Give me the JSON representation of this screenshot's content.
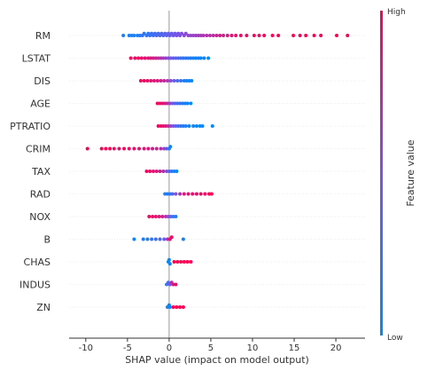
{
  "chart_data": {
    "type": "scatter",
    "title": "",
    "xlabel": "SHAP value (impact on model output)",
    "xlim": [
      -12,
      23.5
    ],
    "xticks": [
      -10,
      -5,
      0,
      5,
      10,
      15,
      20
    ],
    "zero_line": true,
    "colorbar": {
      "label": "Feature value",
      "high_label": "High",
      "low_label": "Low",
      "low_color": "#008bfb",
      "mid_color": "#7c52e6",
      "high_color": "#ff0052"
    },
    "features": [
      {
        "name": "RM",
        "points": [
          {
            "x": -5.5,
            "v": 0.1
          },
          {
            "x": -4.8,
            "v": 0.1
          },
          {
            "x": -4.5,
            "v": 0.15
          },
          {
            "x": -4.2,
            "v": 0.1
          },
          {
            "x": -3.8,
            "v": 0.12
          },
          {
            "x": -3.5,
            "v": 0.15
          },
          {
            "x": -3.2,
            "v": 0.2
          },
          {
            "x": -3.0,
            "v": 0.15
          },
          {
            "x": -2.7,
            "v": 0.2
          },
          {
            "x": -2.5,
            "v": 0.2
          },
          {
            "x": -2.3,
            "v": 0.22
          },
          {
            "x": -2.1,
            "v": 0.25
          },
          {
            "x": -1.9,
            "v": 0.25
          },
          {
            "x": -1.7,
            "v": 0.25
          },
          {
            "x": -1.5,
            "v": 0.3
          },
          {
            "x": -1.3,
            "v": 0.3
          },
          {
            "x": -1.1,
            "v": 0.3
          },
          {
            "x": -0.9,
            "v": 0.32
          },
          {
            "x": -0.7,
            "v": 0.35
          },
          {
            "x": -0.5,
            "v": 0.35
          },
          {
            "x": -0.3,
            "v": 0.38
          },
          {
            "x": -0.1,
            "v": 0.4
          },
          {
            "x": 0.1,
            "v": 0.42
          },
          {
            "x": 0.3,
            "v": 0.42
          },
          {
            "x": 0.5,
            "v": 0.45
          },
          {
            "x": 0.7,
            "v": 0.45
          },
          {
            "x": 0.9,
            "v": 0.48
          },
          {
            "x": 1.1,
            "v": 0.5
          },
          {
            "x": 1.3,
            "v": 0.52
          },
          {
            "x": 1.5,
            "v": 0.52
          },
          {
            "x": 1.8,
            "v": 0.55
          },
          {
            "x": 2.0,
            "v": 0.55
          },
          {
            "x": 2.3,
            "v": 0.58
          },
          {
            "x": 2.6,
            "v": 0.6
          },
          {
            "x": 2.9,
            "v": 0.6
          },
          {
            "x": 3.2,
            "v": 0.62
          },
          {
            "x": 3.5,
            "v": 0.65
          },
          {
            "x": 3.8,
            "v": 0.65
          },
          {
            "x": 4.1,
            "v": 0.68
          },
          {
            "x": 4.5,
            "v": 0.7
          },
          {
            "x": 4.9,
            "v": 0.72
          },
          {
            "x": 5.3,
            "v": 0.75
          },
          {
            "x": 5.7,
            "v": 0.78
          },
          {
            "x": 6.1,
            "v": 0.8
          },
          {
            "x": 6.5,
            "v": 0.82
          },
          {
            "x": 7.0,
            "v": 0.85
          },
          {
            "x": 7.5,
            "v": 0.88
          },
          {
            "x": 8.0,
            "v": 0.9
          },
          {
            "x": 8.6,
            "v": 0.92
          },
          {
            "x": 9.3,
            "v": 0.95
          },
          {
            "x": 10.2,
            "v": 0.96
          },
          {
            "x": 10.8,
            "v": 0.97
          },
          {
            "x": 11.4,
            "v": 0.97
          },
          {
            "x": 12.4,
            "v": 0.98
          },
          {
            "x": 13.1,
            "v": 0.98
          },
          {
            "x": 14.9,
            "v": 0.99
          },
          {
            "x": 15.7,
            "v": 0.99
          },
          {
            "x": 16.4,
            "v": 0.99
          },
          {
            "x": 17.4,
            "v": 1.0
          },
          {
            "x": 18.2,
            "v": 1.0
          },
          {
            "x": 20.1,
            "v": 1.0
          },
          {
            "x": 21.4,
            "v": 1.0
          }
        ]
      },
      {
        "name": "LSTAT",
        "points": [
          {
            "x": -4.6,
            "v": 0.98
          },
          {
            "x": -4.1,
            "v": 0.95
          },
          {
            "x": -3.7,
            "v": 0.95
          },
          {
            "x": -3.3,
            "v": 0.92
          },
          {
            "x": -2.9,
            "v": 0.9
          },
          {
            "x": -2.5,
            "v": 0.88
          },
          {
            "x": -2.2,
            "v": 0.85
          },
          {
            "x": -1.9,
            "v": 0.82
          },
          {
            "x": -1.6,
            "v": 0.8
          },
          {
            "x": -1.3,
            "v": 0.75
          },
          {
            "x": -1.0,
            "v": 0.7
          },
          {
            "x": -0.7,
            "v": 0.65
          },
          {
            "x": -0.4,
            "v": 0.6
          },
          {
            "x": -0.1,
            "v": 0.55
          },
          {
            "x": 0.2,
            "v": 0.45
          },
          {
            "x": 0.5,
            "v": 0.4
          },
          {
            "x": 0.8,
            "v": 0.35
          },
          {
            "x": 1.1,
            "v": 0.3
          },
          {
            "x": 1.4,
            "v": 0.25
          },
          {
            "x": 1.7,
            "v": 0.2
          },
          {
            "x": 2.0,
            "v": 0.18
          },
          {
            "x": 2.3,
            "v": 0.15
          },
          {
            "x": 2.6,
            "v": 0.12
          },
          {
            "x": 2.9,
            "v": 0.1
          },
          {
            "x": 3.2,
            "v": 0.08
          },
          {
            "x": 3.5,
            "v": 0.05
          },
          {
            "x": 3.8,
            "v": 0.05
          },
          {
            "x": 4.2,
            "v": 0.03
          },
          {
            "x": 4.7,
            "v": 0.02
          }
        ]
      },
      {
        "name": "DIS",
        "points": [
          {
            "x": -3.4,
            "v": 0.95
          },
          {
            "x": -3.0,
            "v": 0.95
          },
          {
            "x": -2.6,
            "v": 0.92
          },
          {
            "x": -2.2,
            "v": 0.9
          },
          {
            "x": -1.8,
            "v": 0.88
          },
          {
            "x": -1.4,
            "v": 0.85
          },
          {
            "x": -1.0,
            "v": 0.8
          },
          {
            "x": -0.6,
            "v": 0.75
          },
          {
            "x": -0.2,
            "v": 0.65
          },
          {
            "x": 0.2,
            "v": 0.55
          },
          {
            "x": 0.6,
            "v": 0.4
          },
          {
            "x": 1.0,
            "v": 0.3
          },
          {
            "x": 1.4,
            "v": 0.2
          },
          {
            "x": 1.8,
            "v": 0.12
          },
          {
            "x": 2.1,
            "v": 0.08
          },
          {
            "x": 2.4,
            "v": 0.05
          },
          {
            "x": 2.7,
            "v": 0.02
          }
        ]
      },
      {
        "name": "AGE",
        "points": [
          {
            "x": -1.4,
            "v": 0.95
          },
          {
            "x": -1.1,
            "v": 0.92
          },
          {
            "x": -0.8,
            "v": 0.9
          },
          {
            "x": -0.5,
            "v": 0.85
          },
          {
            "x": -0.2,
            "v": 0.75
          },
          {
            "x": 0.1,
            "v": 0.6
          },
          {
            "x": 0.4,
            "v": 0.45
          },
          {
            "x": 0.7,
            "v": 0.35
          },
          {
            "x": 1.0,
            "v": 0.25
          },
          {
            "x": 1.3,
            "v": 0.2
          },
          {
            "x": 1.6,
            "v": 0.15
          },
          {
            "x": 1.9,
            "v": 0.1
          },
          {
            "x": 2.2,
            "v": 0.05
          },
          {
            "x": 2.6,
            "v": 0.03
          }
        ]
      },
      {
        "name": "PTRATIO",
        "points": [
          {
            "x": -1.3,
            "v": 0.95
          },
          {
            "x": -1.0,
            "v": 0.92
          },
          {
            "x": -0.7,
            "v": 0.9
          },
          {
            "x": -0.4,
            "v": 0.85
          },
          {
            "x": -0.1,
            "v": 0.75
          },
          {
            "x": 0.2,
            "v": 0.6
          },
          {
            "x": 0.5,
            "v": 0.5
          },
          {
            "x": 0.8,
            "v": 0.35
          },
          {
            "x": 1.1,
            "v": 0.25
          },
          {
            "x": 1.4,
            "v": 0.2
          },
          {
            "x": 1.7,
            "v": 0.15
          },
          {
            "x": 2.0,
            "v": 0.1
          },
          {
            "x": 2.4,
            "v": 0.08
          },
          {
            "x": 2.9,
            "v": 0.05
          },
          {
            "x": 3.3,
            "v": 0.05
          },
          {
            "x": 3.7,
            "v": 0.03
          },
          {
            "x": 4.0,
            "v": 0.02
          },
          {
            "x": 5.2,
            "v": 0.02
          }
        ]
      },
      {
        "name": "CRIM",
        "points": [
          {
            "x": -9.8,
            "v": 1.0
          },
          {
            "x": -8.1,
            "v": 0.98
          },
          {
            "x": -7.6,
            "v": 0.97
          },
          {
            "x": -7.1,
            "v": 0.97
          },
          {
            "x": -6.6,
            "v": 0.96
          },
          {
            "x": -6.0,
            "v": 0.95
          },
          {
            "x": -5.4,
            "v": 0.95
          },
          {
            "x": -4.8,
            "v": 0.93
          },
          {
            "x": -4.2,
            "v": 0.92
          },
          {
            "x": -3.6,
            "v": 0.9
          },
          {
            "x": -3.0,
            "v": 0.88
          },
          {
            "x": -2.5,
            "v": 0.85
          },
          {
            "x": -2.0,
            "v": 0.82
          },
          {
            "x": -1.5,
            "v": 0.78
          },
          {
            "x": -1.0,
            "v": 0.7
          },
          {
            "x": -0.6,
            "v": 0.6
          },
          {
            "x": -0.3,
            "v": 0.4
          },
          {
            "x": 0.0,
            "v": 0.15
          },
          {
            "x": 0.15,
            "v": 0.05
          }
        ]
      },
      {
        "name": "TAX",
        "points": [
          {
            "x": -2.7,
            "v": 0.95
          },
          {
            "x": -2.3,
            "v": 0.92
          },
          {
            "x": -1.9,
            "v": 0.9
          },
          {
            "x": -1.5,
            "v": 0.85
          },
          {
            "x": -1.1,
            "v": 0.8
          },
          {
            "x": -0.7,
            "v": 0.7
          },
          {
            "x": -0.3,
            "v": 0.55
          },
          {
            "x": 0.0,
            "v": 0.3
          },
          {
            "x": 0.3,
            "v": 0.15
          },
          {
            "x": 0.6,
            "v": 0.1
          },
          {
            "x": 0.9,
            "v": 0.05
          }
        ]
      },
      {
        "name": "RAD",
        "points": [
          {
            "x": -0.5,
            "v": 0.1
          },
          {
            "x": -0.2,
            "v": 0.12
          },
          {
            "x": 0.1,
            "v": 0.2
          },
          {
            "x": 0.4,
            "v": 0.35
          },
          {
            "x": 0.8,
            "v": 0.5
          },
          {
            "x": 1.3,
            "v": 0.7
          },
          {
            "x": 1.8,
            "v": 0.85
          },
          {
            "x": 2.3,
            "v": 0.9
          },
          {
            "x": 2.8,
            "v": 0.92
          },
          {
            "x": 3.3,
            "v": 0.95
          },
          {
            "x": 3.8,
            "v": 0.95
          },
          {
            "x": 4.3,
            "v": 0.97
          },
          {
            "x": 4.8,
            "v": 0.98
          },
          {
            "x": 5.1,
            "v": 1.0
          }
        ]
      },
      {
        "name": "NOX",
        "points": [
          {
            "x": -2.4,
            "v": 0.95
          },
          {
            "x": -2.0,
            "v": 0.92
          },
          {
            "x": -1.6,
            "v": 0.9
          },
          {
            "x": -1.2,
            "v": 0.85
          },
          {
            "x": -0.8,
            "v": 0.8
          },
          {
            "x": -0.4,
            "v": 0.7
          },
          {
            "x": -0.1,
            "v": 0.55
          },
          {
            "x": 0.2,
            "v": 0.35
          },
          {
            "x": 0.5,
            "v": 0.2
          },
          {
            "x": 0.8,
            "v": 0.1
          }
        ]
      },
      {
        "name": "B",
        "points": [
          {
            "x": -4.2,
            "v": 0.05
          },
          {
            "x": -3.1,
            "v": 0.15
          },
          {
            "x": -2.6,
            "v": 0.1
          },
          {
            "x": -2.1,
            "v": 0.2
          },
          {
            "x": -1.6,
            "v": 0.25
          },
          {
            "x": -1.1,
            "v": 0.3
          },
          {
            "x": -0.6,
            "v": 0.45
          },
          {
            "x": -0.2,
            "v": 0.7
          },
          {
            "x": 0.1,
            "v": 0.9
          },
          {
            "x": 0.3,
            "v": 0.95
          },
          {
            "x": 1.7,
            "v": 0.1
          }
        ]
      },
      {
        "name": "CHAS",
        "points": [
          {
            "x": -0.1,
            "v": 0.05
          },
          {
            "x": 0.0,
            "v": 0.05
          },
          {
            "x": 0.1,
            "v": 0.05
          },
          {
            "x": 0.6,
            "v": 1.0
          },
          {
            "x": 1.0,
            "v": 1.0
          },
          {
            "x": 1.4,
            "v": 1.0
          },
          {
            "x": 1.8,
            "v": 1.0
          },
          {
            "x": 2.2,
            "v": 1.0
          },
          {
            "x": 2.6,
            "v": 1.0
          }
        ]
      },
      {
        "name": "INDUS",
        "points": [
          {
            "x": -0.3,
            "v": 0.2
          },
          {
            "x": -0.1,
            "v": 0.3
          },
          {
            "x": 0.1,
            "v": 0.5
          },
          {
            "x": 0.3,
            "v": 0.7
          },
          {
            "x": 0.5,
            "v": 0.85
          },
          {
            "x": 0.8,
            "v": 0.95
          }
        ]
      },
      {
        "name": "ZN",
        "points": [
          {
            "x": -0.2,
            "v": 0.05
          },
          {
            "x": 0.0,
            "v": 0.05
          },
          {
            "x": 0.1,
            "v": 0.05
          },
          {
            "x": 0.5,
            "v": 1.0
          },
          {
            "x": 0.9,
            "v": 1.0
          },
          {
            "x": 1.3,
            "v": 1.0
          },
          {
            "x": 1.7,
            "v": 1.0
          }
        ]
      }
    ]
  }
}
